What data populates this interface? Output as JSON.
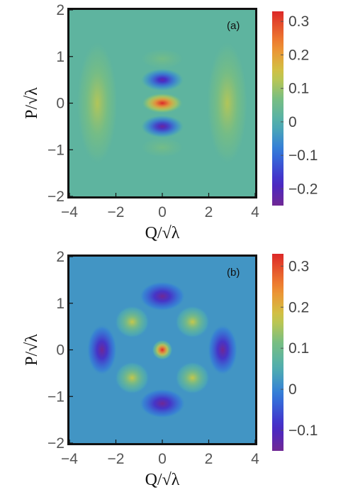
{
  "chart_data": [
    {
      "type": "heatmap",
      "panel_label": "(a)",
      "xlabel": "Q/√λ",
      "ylabel": "P/√λ",
      "xlim": [
        -4,
        4
      ],
      "ylim": [
        -2,
        2
      ],
      "xticks": [
        -4,
        -2,
        0,
        2,
        4
      ],
      "yticks": [
        -2,
        -1,
        0,
        1,
        2
      ],
      "xtick_labels": [
        "−4",
        "−2",
        "0",
        "2",
        "4"
      ],
      "ytick_labels": [
        "−2",
        "−1",
        "0",
        "1",
        "2"
      ],
      "colorbar": {
        "range": [
          -0.25,
          0.33
        ],
        "ticks": [
          -0.2,
          -0.1,
          0,
          0.1,
          0.2,
          0.3
        ],
        "tick_labels": [
          "−0.2",
          "−0.1",
          "0",
          "0.1",
          "0.2",
          "0.3"
        ]
      },
      "background_value": 0.02,
      "features": [
        {
          "x": 0,
          "y": 0,
          "value": 0.33
        },
        {
          "x": 0,
          "y": 0.5,
          "value": -0.22
        },
        {
          "x": 0,
          "y": -0.5,
          "value": -0.24
        },
        {
          "x": 0,
          "y": 0.95,
          "value": 0.07
        },
        {
          "x": 0,
          "y": -0.95,
          "value": 0.07
        },
        {
          "x": -2.8,
          "y": 0,
          "value": 0.12
        },
        {
          "x": 2.8,
          "y": 0,
          "value": 0.12
        }
      ],
      "colormap": "rainbow",
      "grid": false
    },
    {
      "type": "heatmap",
      "panel_label": "(b)",
      "xlabel": "Q/√λ",
      "ylabel": "P/√λ",
      "xlim": [
        -4,
        4
      ],
      "ylim": [
        -2,
        2
      ],
      "xticks": [
        -4,
        -2,
        0,
        2,
        4
      ],
      "yticks": [
        -2,
        -1,
        0,
        1,
        2
      ],
      "xtick_labels": [
        "−4",
        "−2",
        "0",
        "2",
        "4"
      ],
      "ytick_labels": [
        "−2",
        "−1",
        "0",
        "1",
        "2"
      ],
      "colorbar": {
        "range": [
          -0.15,
          0.33
        ],
        "ticks": [
          -0.1,
          0,
          0.1,
          0.2,
          0.3
        ],
        "tick_labels": [
          "−0.1",
          "0",
          "0.1",
          "0.2",
          "0.3"
        ]
      },
      "background_value": 0.02,
      "features": [
        {
          "x": 0,
          "y": 0,
          "value": 0.33
        },
        {
          "x": 0,
          "y": 1.15,
          "value": -0.15
        },
        {
          "x": 0,
          "y": -1.15,
          "value": -0.15
        },
        {
          "x": -2.6,
          "y": 0,
          "value": -0.15
        },
        {
          "x": 2.6,
          "y": 0,
          "value": -0.15
        },
        {
          "x": -1.3,
          "y": 0.6,
          "value": 0.17
        },
        {
          "x": 1.3,
          "y": 0.6,
          "value": 0.17
        },
        {
          "x": -1.3,
          "y": -0.6,
          "value": 0.17
        },
        {
          "x": 1.3,
          "y": -0.6,
          "value": 0.17
        }
      ],
      "colormap": "rainbow",
      "grid": false
    }
  ]
}
